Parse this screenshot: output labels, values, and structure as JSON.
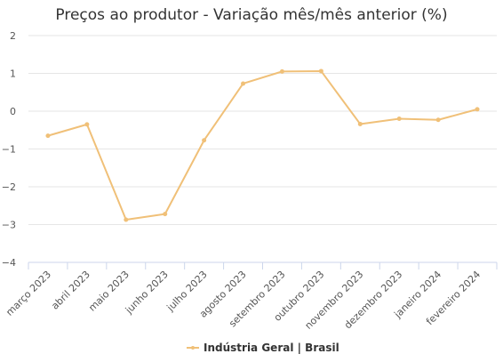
{
  "chart_data": {
    "type": "line",
    "title": "Preços ao produtor - Variação mês/mês anterior (%)",
    "categories": [
      "março 2023",
      "abril 2023",
      "maio 2023",
      "junho 2023",
      "julho 2023",
      "agosto 2023",
      "setembro 2023",
      "outubro 2023",
      "novembro 2023",
      "dezembro 2023",
      "janeiro 2024",
      "fevereiro 2024"
    ],
    "series": [
      {
        "name": "Indústria Geral | Brasil",
        "color": "#f0c078",
        "values": [
          -0.65,
          -0.35,
          -2.87,
          -2.72,
          -0.77,
          0.73,
          1.05,
          1.06,
          -0.34,
          -0.2,
          -0.23,
          0.05
        ]
      }
    ],
    "ylim": [
      -4,
      2
    ],
    "yticks": [
      2,
      1,
      0,
      -1,
      -2,
      -3,
      -4
    ],
    "ytick_labels": [
      "2",
      "1",
      "0",
      "−1",
      "−2",
      "−3",
      "−4"
    ],
    "grid": true,
    "legend_position": "bottom-center",
    "xlabel": "",
    "ylabel": ""
  }
}
